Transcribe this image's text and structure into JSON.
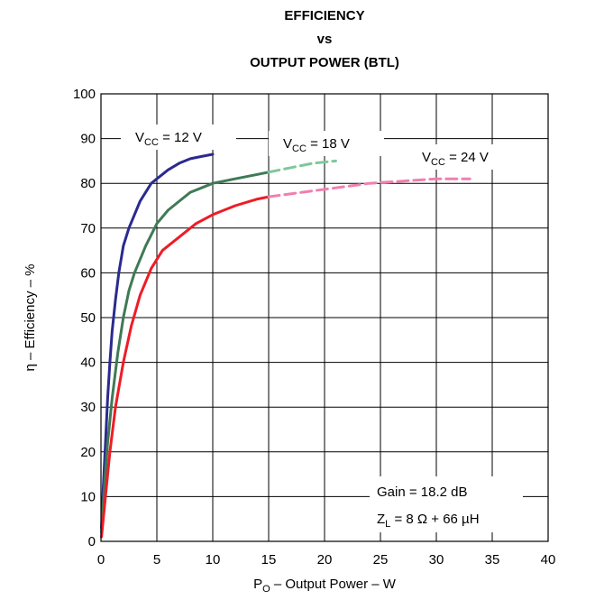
{
  "chart_data": {
    "type": "line",
    "title_lines": [
      "EFFICIENCY",
      "vs",
      "OUTPUT POWER (BTL)"
    ],
    "xlabel": {
      "main": "P",
      "sub": "O",
      "rest": " – Output Power – W"
    },
    "ylabel": "η – Efficiency – %",
    "xlim": [
      0,
      40
    ],
    "ylim": [
      0,
      100
    ],
    "xticks": [
      "0",
      "5",
      "10",
      "15",
      "20",
      "25",
      "30",
      "35",
      "40"
    ],
    "yticks": [
      "0",
      "10",
      "20",
      "30",
      "40",
      "50",
      "60",
      "70",
      "80",
      "90",
      "100"
    ],
    "grid": true,
    "annotations": {
      "gain": "Gain = 18.2 dB",
      "zl": {
        "main": "Z",
        "sub": "L",
        "rest": " = 8 Ω + 66 µH"
      }
    },
    "series": [
      {
        "name": {
          "main": "V",
          "sub": "CC",
          "rest": " = 12 V"
        },
        "color": "#2b2a8f",
        "solid_until": 10,
        "points": [
          [
            0.05,
            3
          ],
          [
            0.2,
            12
          ],
          [
            0.4,
            22
          ],
          [
            0.6,
            32
          ],
          [
            0.8,
            40
          ],
          [
            1,
            47
          ],
          [
            1.3,
            54
          ],
          [
            1.6,
            60
          ],
          [
            2,
            66
          ],
          [
            2.5,
            70
          ],
          [
            3,
            73
          ],
          [
            3.5,
            76
          ],
          [
            4,
            78
          ],
          [
            4.5,
            80
          ],
          [
            5,
            81
          ],
          [
            6,
            83
          ],
          [
            7,
            84.5
          ],
          [
            8,
            85.5
          ],
          [
            9,
            86
          ],
          [
            10,
            86.5
          ]
        ]
      },
      {
        "name": {
          "main": "V",
          "sub": "CC",
          "rest": " = 18 V"
        },
        "color": "#3f7a55",
        "dash_color": "#7fc79a",
        "solid_until": 15,
        "points": [
          [
            0.05,
            2
          ],
          [
            0.3,
            12
          ],
          [
            0.6,
            22
          ],
          [
            1,
            32
          ],
          [
            1.5,
            42
          ],
          [
            2,
            50
          ],
          [
            2.5,
            56
          ],
          [
            3,
            60
          ],
          [
            4,
            66
          ],
          [
            5,
            71
          ],
          [
            6,
            74
          ],
          [
            7,
            76
          ],
          [
            8,
            78
          ],
          [
            9,
            79
          ],
          [
            10,
            80
          ],
          [
            12,
            81
          ],
          [
            14,
            82
          ],
          [
            15,
            82.5
          ],
          [
            17,
            83.5
          ],
          [
            19,
            84.5
          ],
          [
            21,
            85
          ]
        ]
      },
      {
        "name": {
          "main": "V",
          "sub": "CC",
          "rest": " = 24 V"
        },
        "color": "#ee1c25",
        "dash_color": "#f07fb0",
        "solid_until": 15,
        "points": [
          [
            0.05,
            1
          ],
          [
            0.4,
            10
          ],
          [
            0.8,
            20
          ],
          [
            1.3,
            30
          ],
          [
            2,
            40
          ],
          [
            2.7,
            48
          ],
          [
            3.5,
            55
          ],
          [
            4.5,
            61
          ],
          [
            5.5,
            65
          ],
          [
            7,
            68
          ],
          [
            8.5,
            71
          ],
          [
            10,
            73
          ],
          [
            12,
            75
          ],
          [
            14,
            76.5
          ],
          [
            15,
            77
          ],
          [
            18,
            78
          ],
          [
            21,
            79
          ],
          [
            24,
            80
          ],
          [
            27,
            80.5
          ],
          [
            30,
            81
          ],
          [
            32,
            81
          ],
          [
            33,
            81
          ]
        ]
      }
    ]
  }
}
